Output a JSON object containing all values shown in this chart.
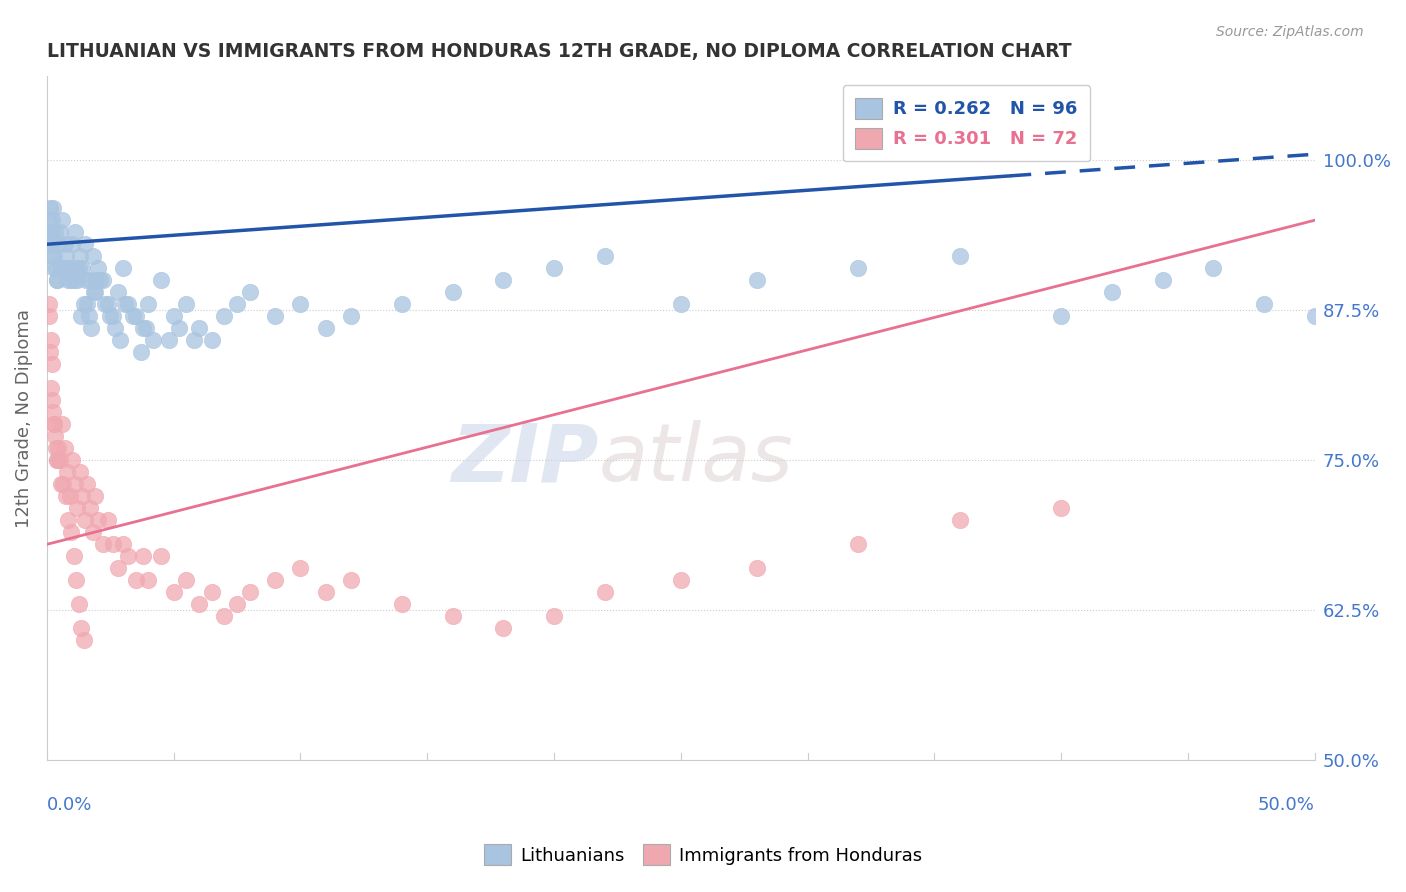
{
  "title": "LITHUANIAN VS IMMIGRANTS FROM HONDURAS 12TH GRADE, NO DIPLOMA CORRELATION CHART",
  "source": "Source: ZipAtlas.com",
  "ylabel": "12th Grade, No Diploma",
  "right_yticks": [
    100.0,
    87.5,
    75.0,
    62.5,
    50.0
  ],
  "right_ytick_labels": [
    "100.0%",
    "87.5%",
    "75.0%",
    "62.5%",
    "50.0%"
  ],
  "xmin": 0.0,
  "xmax": 50.0,
  "ymin": 50.0,
  "ymax": 107.0,
  "blue_color": "#a8c4e0",
  "pink_color": "#f0a8b0",
  "blue_line_color": "#2255aa",
  "pink_line_color": "#e87090",
  "legend_blue_label": "R = 0.262   N = 96",
  "legend_pink_label": "R = 0.301   N = 72",
  "watermark_zip": "ZIP",
  "watermark_atlas": "atlas",
  "background_color": "#ffffff",
  "grid_color": "#cccccc",
  "axis_label_color": "#4477cc",
  "blue_scatter_x": [
    0.05,
    0.08,
    0.1,
    0.12,
    0.15,
    0.18,
    0.2,
    0.22,
    0.25,
    0.28,
    0.3,
    0.32,
    0.35,
    0.38,
    0.4,
    0.42,
    0.5,
    0.55,
    0.6,
    0.65,
    0.7,
    0.75,
    0.8,
    0.85,
    0.9,
    0.95,
    1.0,
    1.05,
    1.1,
    1.15,
    1.2,
    1.25,
    1.3,
    1.35,
    1.4,
    1.45,
    1.5,
    1.55,
    1.6,
    1.65,
    1.7,
    1.75,
    1.8,
    1.85,
    1.9,
    1.95,
    2.0,
    2.1,
    2.2,
    2.3,
    2.4,
    2.5,
    2.6,
    2.7,
    2.8,
    2.9,
    3.0,
    3.1,
    3.2,
    3.4,
    3.5,
    3.7,
    3.8,
    3.9,
    4.0,
    4.2,
    4.5,
    4.8,
    5.0,
    5.2,
    5.5,
    5.8,
    6.0,
    6.5,
    7.0,
    7.5,
    8.0,
    9.0,
    10.0,
    11.0,
    12.0,
    14.0,
    16.0,
    18.0,
    20.0,
    22.0,
    25.0,
    28.0,
    32.0,
    36.0,
    40.0,
    42.0,
    44.0,
    46.0,
    48.0,
    50.0
  ],
  "blue_scatter_y": [
    94,
    95,
    93,
    96,
    94,
    93,
    95,
    92,
    96,
    91,
    92,
    94,
    91,
    90,
    90,
    93,
    94,
    91,
    95,
    91,
    93,
    92,
    91,
    90,
    91,
    90,
    93,
    90,
    94,
    91,
    90,
    91,
    92,
    87,
    91,
    88,
    93,
    90,
    88,
    87,
    90,
    86,
    92,
    89,
    89,
    90,
    91,
    90,
    90,
    88,
    88,
    87,
    87,
    86,
    89,
    85,
    91,
    88,
    88,
    87,
    87,
    84,
    86,
    86,
    88,
    85,
    90,
    85,
    87,
    86,
    88,
    85,
    86,
    85,
    87,
    88,
    89,
    87,
    88,
    86,
    87,
    88,
    89,
    90,
    91,
    92,
    88,
    90,
    91,
    92,
    87,
    89,
    90,
    91,
    88,
    87
  ],
  "pink_scatter_x": [
    0.08,
    0.1,
    0.12,
    0.15,
    0.18,
    0.2,
    0.22,
    0.25,
    0.28,
    0.3,
    0.32,
    0.35,
    0.38,
    0.4,
    0.42,
    0.5,
    0.55,
    0.6,
    0.65,
    0.7,
    0.75,
    0.8,
    0.85,
    0.9,
    0.95,
    1.0,
    1.05,
    1.1,
    1.15,
    1.2,
    1.25,
    1.3,
    1.35,
    1.4,
    1.45,
    1.5,
    1.6,
    1.7,
    1.8,
    1.9,
    2.0,
    2.2,
    2.4,
    2.6,
    2.8,
    3.0,
    3.2,
    3.5,
    3.8,
    4.0,
    4.5,
    5.0,
    5.5,
    6.0,
    6.5,
    7.0,
    7.5,
    8.0,
    9.0,
    10.0,
    11.0,
    12.0,
    14.0,
    16.0,
    18.0,
    20.0,
    22.0,
    25.0,
    28.0,
    32.0,
    36.0,
    40.0
  ],
  "pink_scatter_y": [
    87,
    88,
    84,
    85,
    81,
    83,
    80,
    79,
    78,
    78,
    77,
    76,
    75,
    75,
    76,
    75,
    73,
    78,
    73,
    76,
    72,
    74,
    70,
    72,
    69,
    75,
    67,
    73,
    65,
    71,
    63,
    74,
    61,
    72,
    60,
    70,
    73,
    71,
    69,
    72,
    70,
    68,
    70,
    68,
    66,
    68,
    67,
    65,
    67,
    65,
    67,
    64,
    65,
    63,
    64,
    62,
    63,
    64,
    65,
    66,
    64,
    65,
    63,
    62,
    61,
    62,
    64,
    65,
    66,
    68,
    70,
    71
  ],
  "blue_trendline_x": [
    0.0,
    50.0
  ],
  "blue_trendline_y": [
    93.0,
    100.5
  ],
  "blue_dash_start": 38.0,
  "pink_trendline_x": [
    0.0,
    50.0
  ],
  "pink_trendline_y": [
    68.0,
    95.0
  ]
}
